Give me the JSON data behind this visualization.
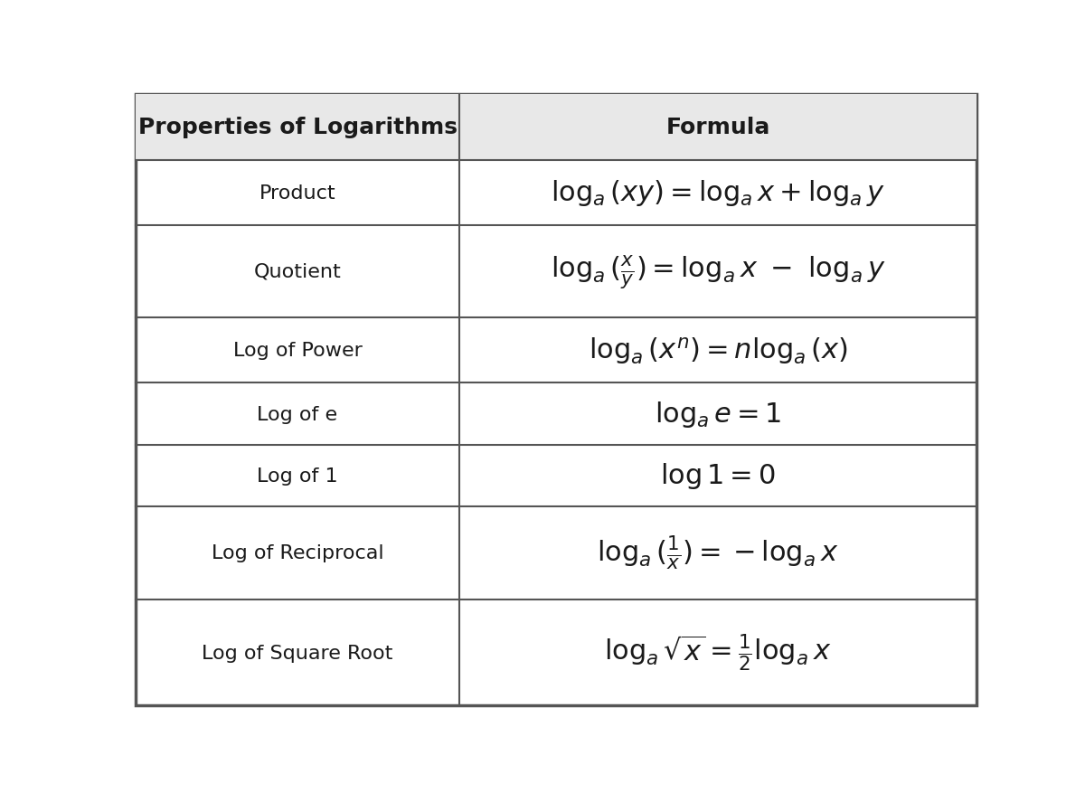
{
  "col1_header": "Properties of Logarithms",
  "col2_header": "Formula",
  "rows": [
    {
      "property": "Product",
      "formula_latex": "$\\log_{a}(xy) = \\log_{a}x + \\log_{a}y$"
    },
    {
      "property": "Quotient",
      "formula_latex": "$\\log_{a}(\\frac{x}{y}) = \\log_{a}x\\ -\\ \\log_{a}y$"
    },
    {
      "property": "Log of Power",
      "formula_latex": "$\\log_{a}(x^{n}) = n\\log_{a}(x)$"
    },
    {
      "property": "Log of e",
      "formula_latex": "$\\log_{a}e = 1$"
    },
    {
      "property": "Log of 1",
      "formula_latex": "$\\log 1 = 0$"
    },
    {
      "property": "Log of Reciprocal",
      "formula_latex": "$\\log_{a}(\\frac{1}{x}) = -\\log_{a}x$"
    },
    {
      "property": "Log of Square Root",
      "formula_latex": "$\\log_{a}\\sqrt{x} = \\frac{1}{2}\\log_{a}x$"
    }
  ],
  "bg_color": "#ffffff",
  "header_bg": "#e8e8e8",
  "grid_color": "#555555",
  "text_color": "#1a1a1a",
  "header_fontsize": 18,
  "property_fontsize": 16,
  "formula_fontsize": 22,
  "col_split": 0.385,
  "outer_border_lw": 2.5,
  "inner_border_lw": 1.5
}
